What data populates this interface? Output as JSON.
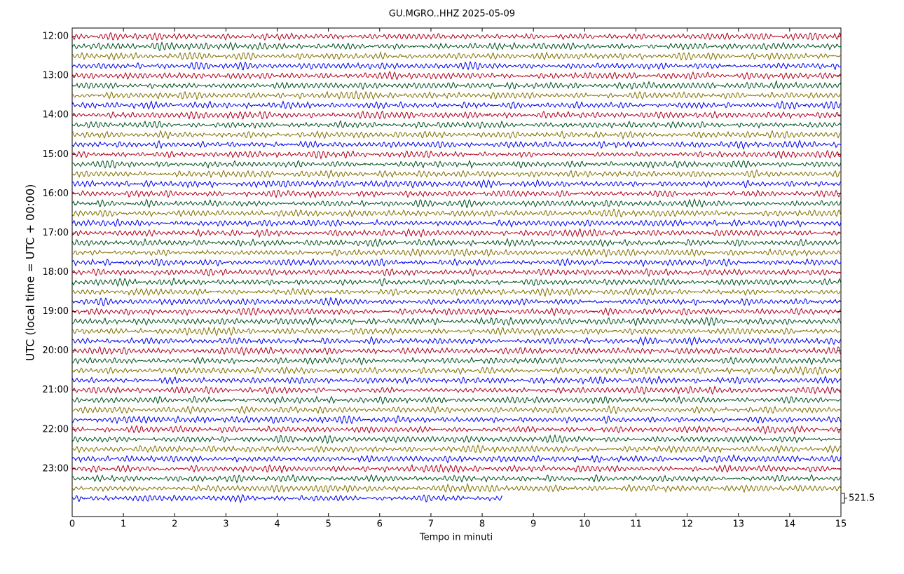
{
  "chart_data": {
    "type": "helicorder",
    "title": "GU.MGRO..HHZ 2025-05-09",
    "xlabel": "Tempo in minuti",
    "ylabel": "UTC (local time = UTC + 00:00)",
    "xlim": [
      0,
      15
    ],
    "xticks": [
      0,
      1,
      2,
      3,
      4,
      5,
      6,
      7,
      8,
      9,
      10,
      11,
      12,
      13,
      14,
      15
    ],
    "ylim": [
      -0.86,
      48.86
    ],
    "y_inverted": true,
    "yticks": [
      {
        "value": 0,
        "label": "12:00"
      },
      {
        "value": 4,
        "label": "13:00"
      },
      {
        "value": 8,
        "label": "14:00"
      },
      {
        "value": 12,
        "label": "15:00"
      },
      {
        "value": 16,
        "label": "16:00"
      },
      {
        "value": 20,
        "label": "17:00"
      },
      {
        "value": 24,
        "label": "18:00"
      },
      {
        "value": 28,
        "label": "19:00"
      },
      {
        "value": 32,
        "label": "20:00"
      },
      {
        "value": 36,
        "label": "21:00"
      },
      {
        "value": 40,
        "label": "22:00"
      },
      {
        "value": 44,
        "label": "23:00"
      }
    ],
    "trace_colors": [
      "#b0001e",
      "#00501e",
      "#807000",
      "#0000ee"
    ],
    "trace_ends": [
      15,
      15,
      15,
      15,
      15,
      15,
      15,
      15,
      15,
      15,
      15,
      15,
      15,
      15,
      15,
      15,
      15,
      15,
      15,
      15,
      15,
      15,
      15,
      15,
      15,
      15,
      15,
      15,
      15,
      15,
      15,
      15,
      15,
      15,
      15,
      15,
      15,
      15,
      15,
      15,
      15,
      15,
      15,
      15,
      15,
      15,
      15,
      8.4
    ],
    "scale": 521.5
  }
}
